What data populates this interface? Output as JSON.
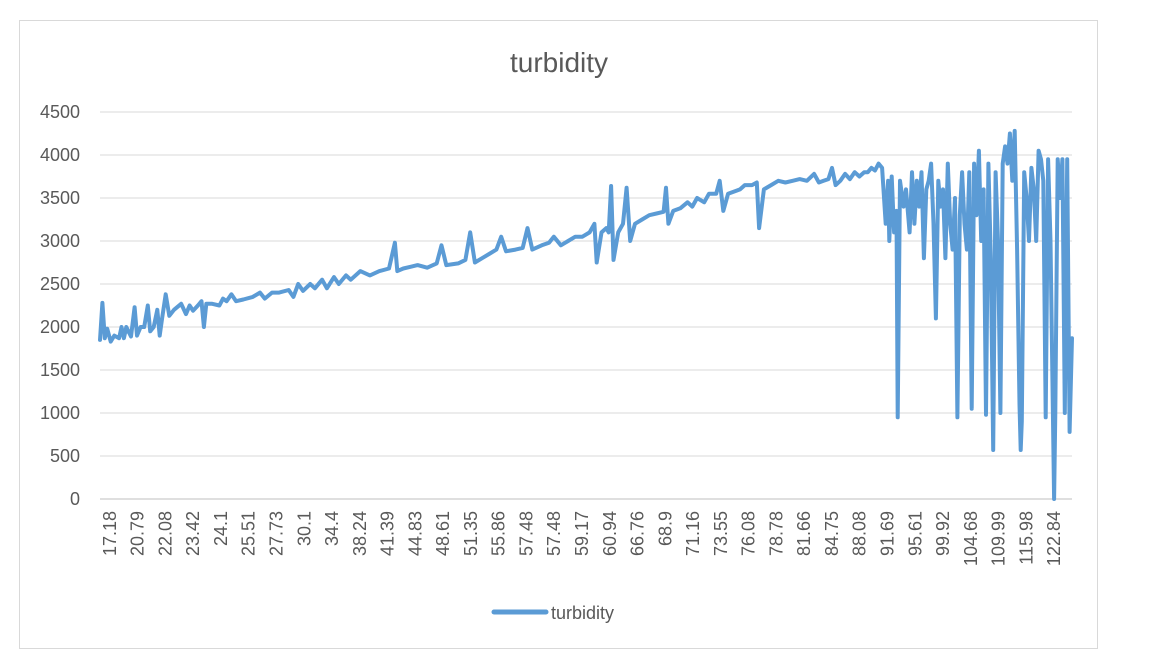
{
  "chart_data": {
    "type": "line",
    "title": "turbidity",
    "xlabel": "",
    "ylabel": "",
    "ylim": [
      0,
      4500
    ],
    "yticks": [
      0,
      500,
      1000,
      1500,
      2000,
      2500,
      3000,
      3500,
      4000,
      4500
    ],
    "x_tick_labels": [
      "17.18",
      "20.79",
      "22.08",
      "23.42",
      "24.1",
      "25.51",
      "27.73",
      "30.1",
      "34.4",
      "38.24",
      "41.39",
      "44.83",
      "48.61",
      "51.35",
      "55.86",
      "57.48",
      "57.48",
      "59.17",
      "60.94",
      "66.76",
      "68.9",
      "71.16",
      "73.55",
      "76.08",
      "78.78",
      "81.66",
      "84.75",
      "88.08",
      "91.69",
      "95.61",
      "99.92",
      "104.68",
      "109.99",
      "115.98",
      "122.84"
    ],
    "grid": true,
    "legend": "bottom",
    "color": "#5b9bd5",
    "series": [
      {
        "name": "turbidity",
        "points": [
          [
            0,
            1850
          ],
          [
            0.1,
            2280
          ],
          [
            0.2,
            1870
          ],
          [
            0.3,
            1980
          ],
          [
            0.45,
            1830
          ],
          [
            0.6,
            1900
          ],
          [
            0.8,
            1870
          ],
          [
            0.9,
            2000
          ],
          [
            1.0,
            1870
          ],
          [
            1.1,
            2000
          ],
          [
            1.3,
            1890
          ],
          [
            1.45,
            2230
          ],
          [
            1.55,
            1900
          ],
          [
            1.7,
            2000
          ],
          [
            1.85,
            2000
          ],
          [
            2.0,
            2250
          ],
          [
            2.1,
            1950
          ],
          [
            2.25,
            2000
          ],
          [
            2.4,
            2200
          ],
          [
            2.5,
            1900
          ],
          [
            2.6,
            2100
          ],
          [
            2.75,
            2380
          ],
          [
            2.9,
            2130
          ],
          [
            3.1,
            2200
          ],
          [
            3.4,
            2270
          ],
          [
            3.6,
            2150
          ],
          [
            3.75,
            2250
          ],
          [
            3.9,
            2190
          ],
          [
            4.1,
            2250
          ],
          [
            4.25,
            2300
          ],
          [
            4.35,
            2000
          ],
          [
            4.45,
            2270
          ],
          [
            4.7,
            2270
          ],
          [
            5.0,
            2250
          ],
          [
            5.15,
            2330
          ],
          [
            5.3,
            2300
          ],
          [
            5.5,
            2380
          ],
          [
            5.7,
            2300
          ],
          [
            6.0,
            2320
          ],
          [
            6.4,
            2350
          ],
          [
            6.7,
            2400
          ],
          [
            6.9,
            2330
          ],
          [
            7.2,
            2400
          ],
          [
            7.5,
            2400
          ],
          [
            7.9,
            2430
          ],
          [
            8.1,
            2350
          ],
          [
            8.3,
            2500
          ],
          [
            8.5,
            2420
          ],
          [
            8.8,
            2500
          ],
          [
            9.0,
            2450
          ],
          [
            9.3,
            2550
          ],
          [
            9.5,
            2450
          ],
          [
            9.8,
            2580
          ],
          [
            10.0,
            2500
          ],
          [
            10.3,
            2600
          ],
          [
            10.5,
            2550
          ],
          [
            10.9,
            2650
          ],
          [
            11.3,
            2600
          ],
          [
            11.7,
            2650
          ],
          [
            12.1,
            2680
          ],
          [
            12.35,
            2980
          ],
          [
            12.45,
            2650
          ],
          [
            12.7,
            2680
          ],
          [
            13.0,
            2700
          ],
          [
            13.3,
            2720
          ],
          [
            13.7,
            2690
          ],
          [
            14.1,
            2740
          ],
          [
            14.3,
            2950
          ],
          [
            14.5,
            2720
          ],
          [
            15.0,
            2740
          ],
          [
            15.3,
            2780
          ],
          [
            15.5,
            3100
          ],
          [
            15.7,
            2750
          ],
          [
            16.0,
            2800
          ],
          [
            16.3,
            2850
          ],
          [
            16.6,
            2900
          ],
          [
            16.8,
            3050
          ],
          [
            17.0,
            2880
          ],
          [
            17.4,
            2900
          ],
          [
            17.7,
            2920
          ],
          [
            17.9,
            3150
          ],
          [
            18.1,
            2900
          ],
          [
            18.5,
            2950
          ],
          [
            18.8,
            2980
          ],
          [
            19.0,
            3050
          ],
          [
            19.3,
            2950
          ],
          [
            19.6,
            3000
          ],
          [
            19.9,
            3050
          ],
          [
            20.2,
            3050
          ],
          [
            20.5,
            3100
          ],
          [
            20.7,
            3200
          ],
          [
            20.8,
            2750
          ],
          [
            21.0,
            3100
          ],
          [
            21.2,
            3150
          ],
          [
            21.3,
            3100
          ],
          [
            21.4,
            3640
          ],
          [
            21.5,
            2780
          ],
          [
            21.7,
            3100
          ],
          [
            21.9,
            3200
          ],
          [
            22.05,
            3620
          ],
          [
            22.2,
            3000
          ],
          [
            22.4,
            3200
          ],
          [
            22.7,
            3250
          ],
          [
            23.0,
            3300
          ],
          [
            23.3,
            3320
          ],
          [
            23.6,
            3340
          ],
          [
            23.7,
            3620
          ],
          [
            23.8,
            3200
          ],
          [
            24.0,
            3350
          ],
          [
            24.3,
            3380
          ],
          [
            24.6,
            3450
          ],
          [
            24.8,
            3400
          ],
          [
            25.0,
            3500
          ],
          [
            25.3,
            3450
          ],
          [
            25.5,
            3550
          ],
          [
            25.8,
            3550
          ],
          [
            25.95,
            3700
          ],
          [
            26.1,
            3350
          ],
          [
            26.3,
            3550
          ],
          [
            26.6,
            3580
          ],
          [
            26.8,
            3600
          ],
          [
            27.0,
            3650
          ],
          [
            27.3,
            3650
          ],
          [
            27.5,
            3680
          ],
          [
            27.6,
            3150
          ],
          [
            27.8,
            3600
          ],
          [
            28.1,
            3650
          ],
          [
            28.4,
            3700
          ],
          [
            28.7,
            3680
          ],
          [
            29.0,
            3700
          ],
          [
            29.3,
            3720
          ],
          [
            29.6,
            3700
          ],
          [
            29.9,
            3780
          ],
          [
            30.1,
            3680
          ],
          [
            30.3,
            3700
          ],
          [
            30.5,
            3720
          ],
          [
            30.65,
            3850
          ],
          [
            30.8,
            3650
          ],
          [
            31.0,
            3700
          ],
          [
            31.2,
            3780
          ],
          [
            31.4,
            3720
          ],
          [
            31.6,
            3800
          ],
          [
            31.8,
            3750
          ],
          [
            32.0,
            3800
          ],
          [
            32.15,
            3800
          ],
          [
            32.3,
            3850
          ],
          [
            32.45,
            3820
          ],
          [
            32.6,
            3900
          ],
          [
            32.75,
            3850
          ],
          [
            32.9,
            3200
          ],
          [
            33.0,
            3700
          ],
          [
            33.05,
            3000
          ],
          [
            33.15,
            3750
          ],
          [
            33.25,
            3100
          ],
          [
            33.35,
            3350
          ],
          [
            33.4,
            950
          ],
          [
            33.5,
            3700
          ],
          [
            33.65,
            3400
          ],
          [
            33.75,
            3600
          ],
          [
            33.9,
            3100
          ],
          [
            34.0,
            3800
          ],
          [
            34.1,
            3200
          ],
          [
            34.2,
            3700
          ],
          [
            34.3,
            3400
          ],
          [
            34.4,
            3800
          ],
          [
            34.5,
            2800
          ],
          [
            34.6,
            3600
          ],
          [
            34.7,
            3700
          ],
          [
            34.8,
            3900
          ],
          [
            34.9,
            3200
          ],
          [
            35.0,
            2100
          ],
          [
            35.1,
            3700
          ],
          [
            35.2,
            3400
          ],
          [
            35.3,
            3600
          ],
          [
            35.4,
            2800
          ],
          [
            35.5,
            3900
          ],
          [
            35.6,
            3200
          ],
          [
            35.7,
            2900
          ],
          [
            35.8,
            3500
          ],
          [
            35.9,
            950
          ],
          [
            36.0,
            3300
          ],
          [
            36.1,
            3800
          ],
          [
            36.2,
            3200
          ],
          [
            36.3,
            2900
          ],
          [
            36.4,
            3800
          ],
          [
            36.5,
            1050
          ],
          [
            36.6,
            3900
          ],
          [
            36.7,
            3300
          ],
          [
            36.8,
            4050
          ],
          [
            36.9,
            3000
          ],
          [
            37.0,
            3600
          ],
          [
            37.1,
            980
          ],
          [
            37.2,
            3900
          ],
          [
            37.3,
            2800
          ],
          [
            37.4,
            570
          ],
          [
            37.5,
            3800
          ],
          [
            37.6,
            3000
          ],
          [
            37.7,
            1000
          ],
          [
            37.8,
            3900
          ],
          [
            37.9,
            4100
          ],
          [
            38.0,
            3900
          ],
          [
            38.1,
            4250
          ],
          [
            38.2,
            3700
          ],
          [
            38.3,
            4280
          ],
          [
            38.4,
            2900
          ],
          [
            38.5,
            1100
          ],
          [
            38.55,
            570
          ],
          [
            38.6,
            900
          ],
          [
            38.7,
            3800
          ],
          [
            38.8,
            3500
          ],
          [
            38.9,
            3000
          ],
          [
            39.0,
            3850
          ],
          [
            39.1,
            3600
          ],
          [
            39.2,
            3000
          ],
          [
            39.3,
            4050
          ],
          [
            39.4,
            3950
          ],
          [
            39.5,
            3700
          ],
          [
            39.6,
            950
          ],
          [
            39.7,
            3950
          ],
          [
            39.8,
            3000
          ],
          [
            39.9,
            1000
          ],
          [
            39.95,
            0
          ],
          [
            40.0,
            1000
          ],
          [
            40.1,
            3950
          ],
          [
            40.2,
            3500
          ],
          [
            40.3,
            3950
          ],
          [
            40.4,
            1000
          ],
          [
            40.5,
            3950
          ],
          [
            40.6,
            780
          ],
          [
            40.7,
            1870
          ]
        ]
      }
    ]
  }
}
